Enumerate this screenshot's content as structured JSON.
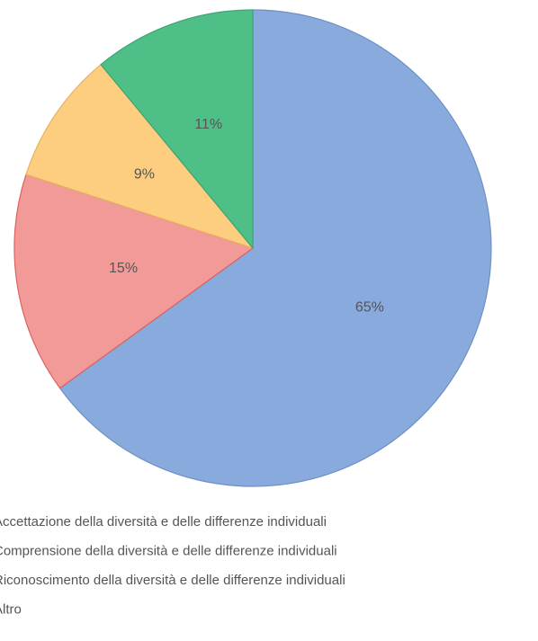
{
  "chart_data": {
    "type": "pie",
    "categories": [
      "Accettazione della diversità e delle differenze individuali",
      "Comprensione della diversità e delle differenze individuali",
      "Riconoscimento della diversità e delle differenze individuali",
      "Altro"
    ],
    "values": [
      65,
      15,
      9,
      11
    ],
    "value_labels": [
      "65%",
      "15%",
      "9%",
      "11%"
    ],
    "colors": [
      "#88aadd",
      "#f29a98",
      "#fdcd80",
      "#4fbf88"
    ]
  }
}
